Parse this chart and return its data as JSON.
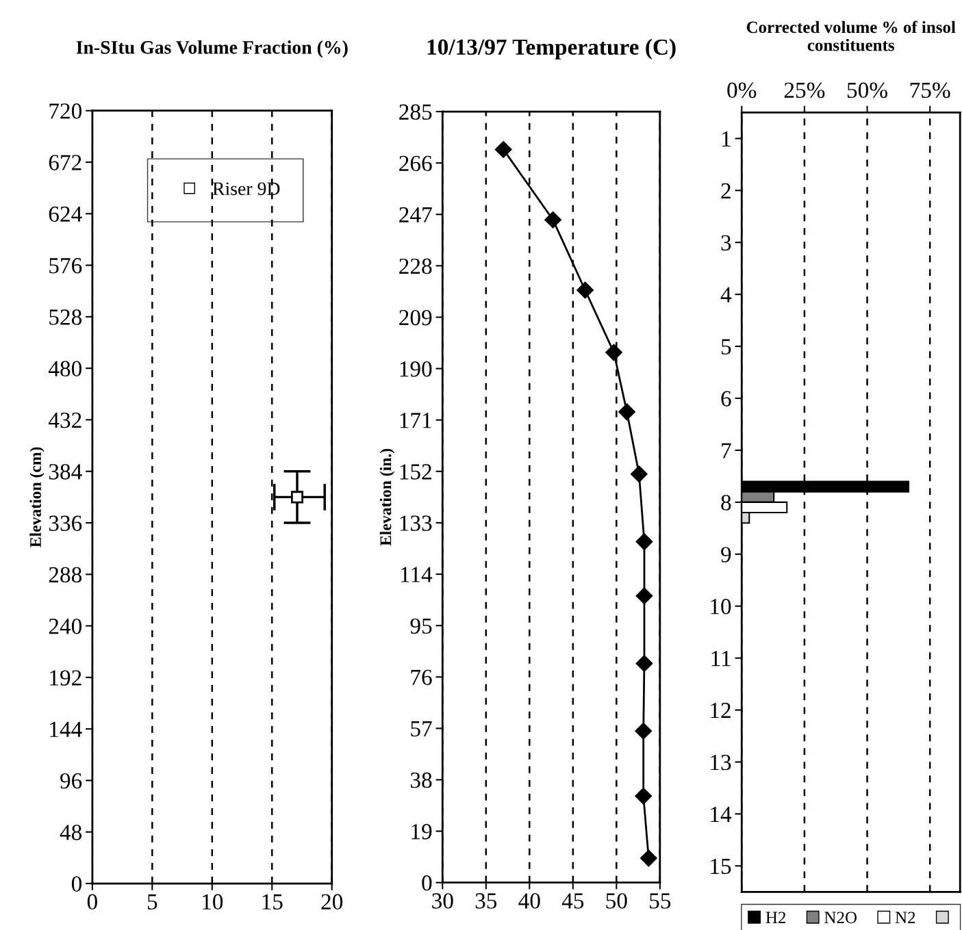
{
  "chart_data": [
    {
      "type": "scatter",
      "title": "In-SItu Gas Volume Fraction (%)",
      "ylabel": "Elevation (cm)",
      "xlim": [
        0,
        20
      ],
      "xticks": [
        0,
        5,
        10,
        15,
        20
      ],
      "ylim": [
        0,
        720
      ],
      "yticks": [
        0,
        48,
        96,
        144,
        192,
        240,
        288,
        336,
        384,
        432,
        480,
        528,
        576,
        624,
        672,
        720
      ],
      "grid": "x",
      "legend": "top right",
      "marker": "square",
      "series": [
        {
          "name": "Riser 9D",
          "color": "#000000",
          "x": [
            17.1
          ],
          "values": [
            360
          ],
          "errors": [
            [
              336,
              384
            ]
          ],
          "xerrors": [
            [
              15.2,
              19.4
            ]
          ]
        }
      ]
    },
    {
      "type": "line",
      "title": "10/13/97 Temperature (C)",
      "ylabel": "Elevation (in.)",
      "xlim": [
        30,
        55
      ],
      "xticks": [
        30,
        35,
        40,
        45,
        50,
        55
      ],
      "ylim": [
        0,
        285
      ],
      "yticks": [
        0,
        19,
        38,
        57,
        76,
        95,
        114,
        133,
        152,
        171,
        190,
        209,
        228,
        247,
        266,
        285
      ],
      "grid": "x",
      "marker": "diamond",
      "line_style": "solid",
      "series": [
        {
          "color": "#000000",
          "x": [
            37.0,
            42.7,
            46.4,
            49.7,
            51.2,
            52.6,
            53.2,
            53.2,
            53.2,
            53.1,
            53.1,
            53.7
          ],
          "values": [
            271,
            245,
            219,
            196,
            174,
            151,
            126,
            106,
            81,
            56,
            32,
            9
          ]
        }
      ]
    },
    {
      "type": "bar",
      "orientation": "horizontal",
      "title": "Corrected volume % of insol\nconstituents",
      "categories": [
        "1",
        "2",
        "3",
        "4",
        "5",
        "6",
        "7",
        "8",
        "9",
        "10",
        "11",
        "12",
        "13",
        "14",
        "15"
      ],
      "xlim": [
        0,
        87
      ],
      "xticks": [
        {
          "value": 0,
          "label": "0%"
        },
        {
          "value": 25,
          "label": "25%"
        },
        {
          "value": 50,
          "label": "50%"
        },
        {
          "value": 75,
          "label": "75%"
        }
      ],
      "grid": "x",
      "legend": "bottom",
      "series": [
        {
          "name": "H2",
          "color": "#000000",
          "values": [
            null,
            null,
            null,
            null,
            null,
            null,
            null,
            66.5,
            null,
            null,
            null,
            null,
            null,
            null,
            null
          ]
        },
        {
          "name": "N2O",
          "color": "#808080",
          "values": [
            null,
            null,
            null,
            null,
            null,
            null,
            null,
            12.8,
            null,
            null,
            null,
            null,
            null,
            null,
            null
          ]
        },
        {
          "name": "N2",
          "color": "#ffffff",
          "values": [
            null,
            null,
            null,
            null,
            null,
            null,
            null,
            18.0,
            null,
            null,
            null,
            null,
            null,
            null,
            null
          ]
        },
        {
          "color": "#d9d9d9",
          "values": [
            null,
            null,
            null,
            null,
            null,
            null,
            null,
            3.0,
            null,
            null,
            null,
            null,
            null,
            null,
            null
          ]
        }
      ]
    }
  ]
}
